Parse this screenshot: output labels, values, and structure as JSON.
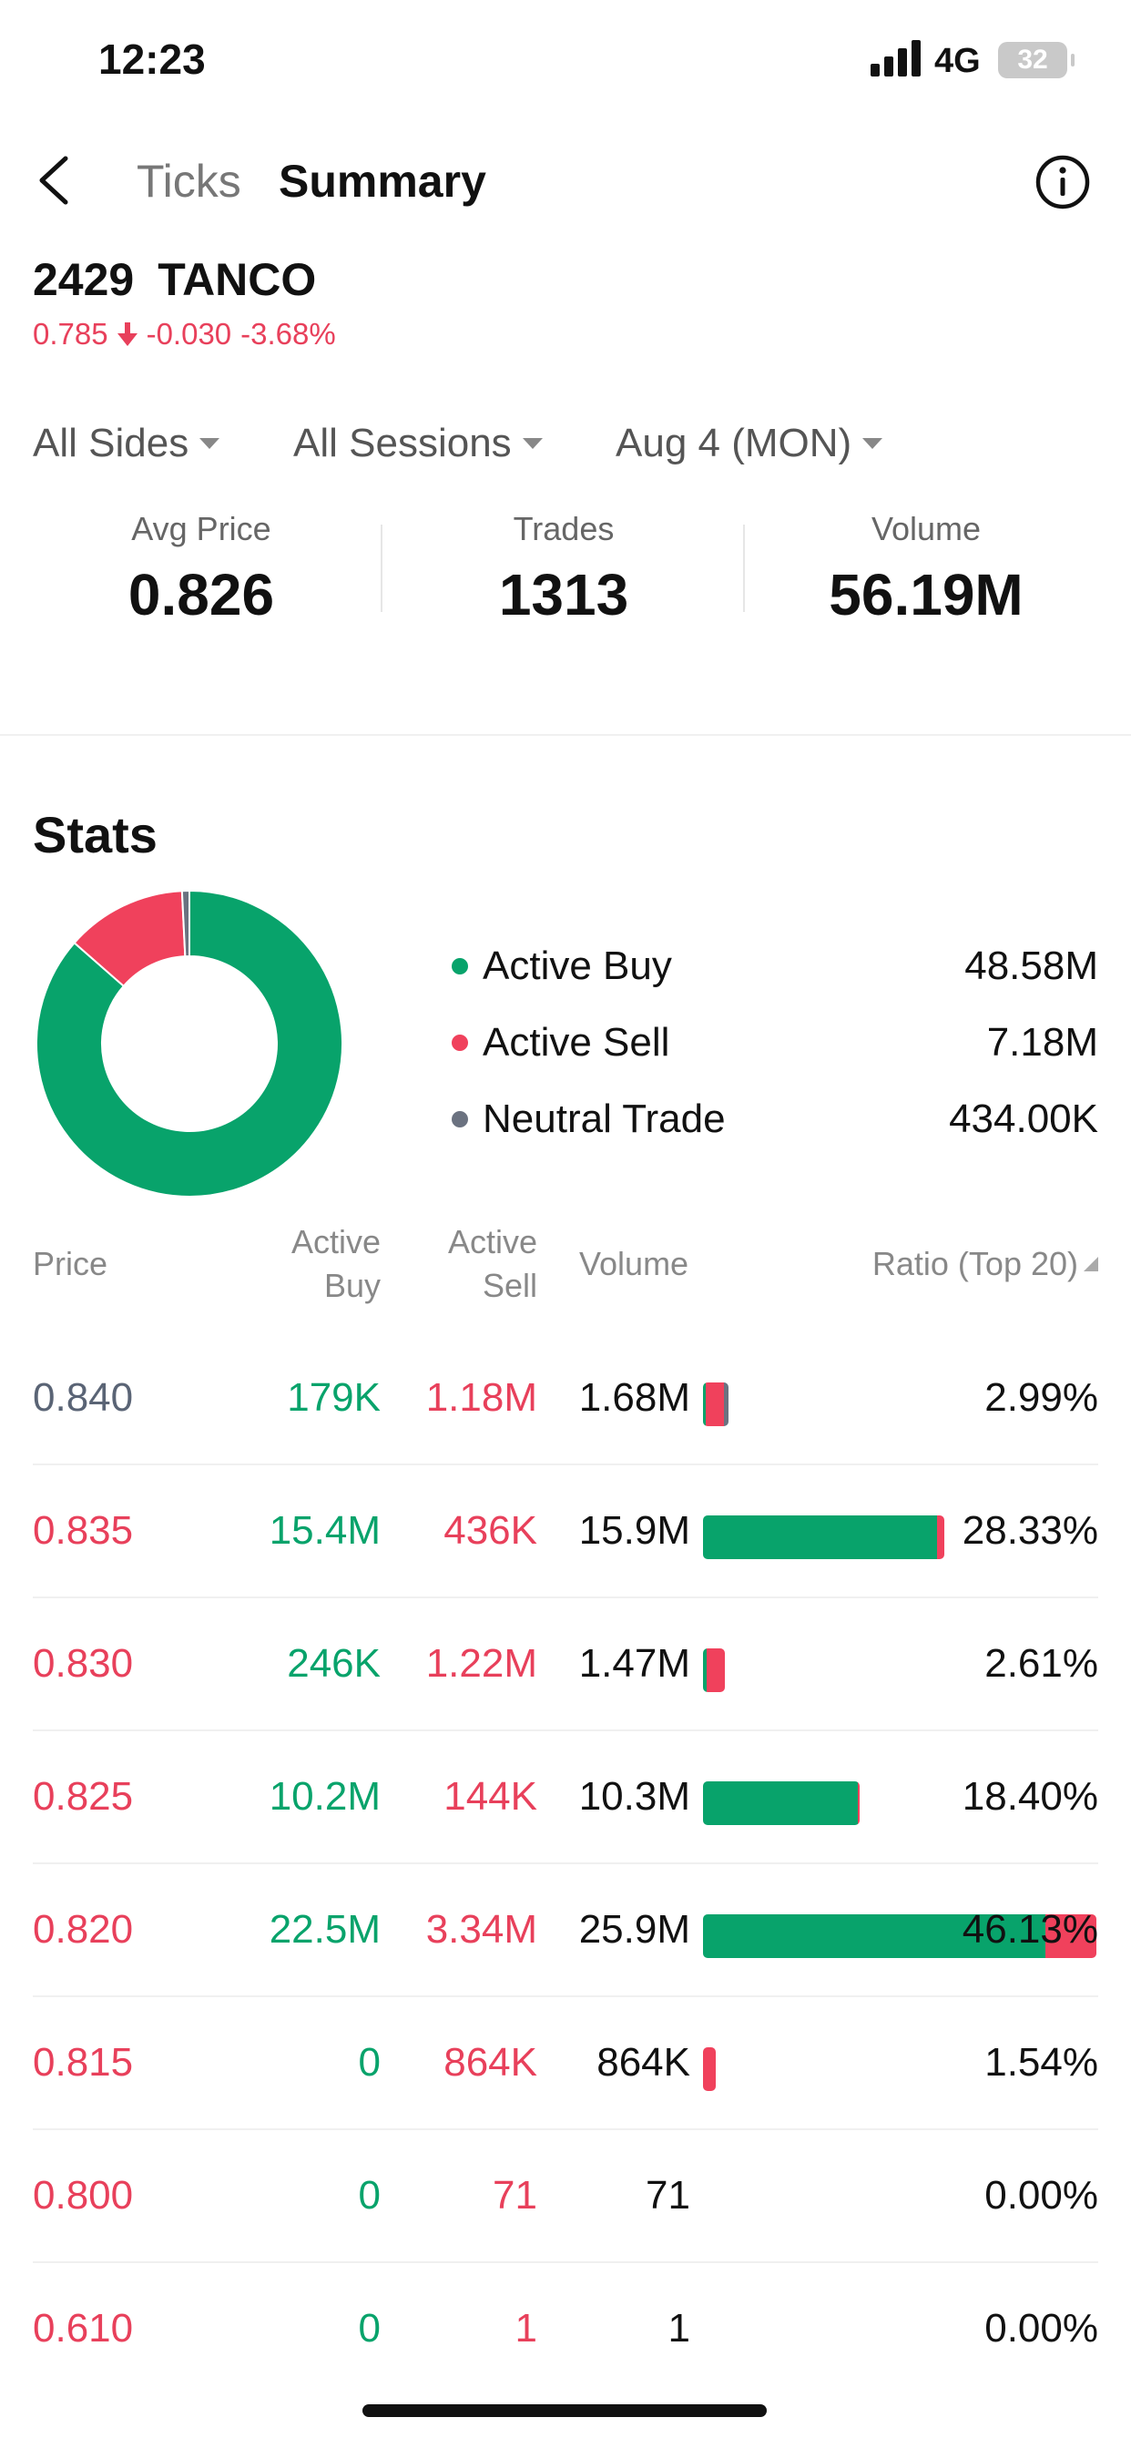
{
  "status_bar": {
    "time": "12:23",
    "network": "4G",
    "battery": "32"
  },
  "header": {
    "tabs": [
      {
        "label": "Ticks",
        "active": false
      },
      {
        "label": "Summary",
        "active": true
      }
    ],
    "back_icon": "chevron-left-icon",
    "info_icon": "info-circle-icon"
  },
  "stock": {
    "code": "2429",
    "name": "TANCO",
    "price": "0.785",
    "change": "-0.030",
    "change_pct": "-3.68%",
    "direction": "down",
    "down_color": "#e8405b"
  },
  "filters": [
    {
      "label": "All Sides"
    },
    {
      "label": "All Sessions"
    },
    {
      "label": "Aug 4 (MON)"
    }
  ],
  "metrics": [
    {
      "label": "Avg Price",
      "value": "0.826"
    },
    {
      "label": "Trades",
      "value": "1313"
    },
    {
      "label": "Volume",
      "value": "56.19M"
    }
  ],
  "stats": {
    "title": "Stats",
    "colors": {
      "buy": "#08a36b",
      "sell": "#f0415c",
      "neutral": "#6b7280"
    },
    "legend": [
      {
        "label": "Active Buy",
        "value": "48.58M"
      },
      {
        "label": "Active Sell",
        "value": "7.18M"
      },
      {
        "label": "Neutral Trade",
        "value": "434.00K"
      }
    ]
  },
  "chart_data": {
    "type": "pie",
    "categories": [
      "Active Buy",
      "Active Sell",
      "Neutral Trade"
    ],
    "values": [
      48.58,
      7.18,
      0.434
    ],
    "units": "M"
  },
  "table": {
    "headers": {
      "price": "Price",
      "active_buy_1": "Active",
      "active_buy_2": "Buy",
      "active_sell_1": "Active",
      "active_sell_2": "Sell",
      "volume": "Volume",
      "ratio": "Ratio (Top 20)"
    },
    "rows": [
      {
        "price": "0.840",
        "buy": "179K",
        "sell": "1.18M",
        "volume": "1.68M",
        "ratio": "2.99%",
        "ratio_value": 2.99,
        "buy_share": 0.11,
        "sell_share": 0.7,
        "price_neutral": true
      },
      {
        "price": "0.835",
        "buy": "15.4M",
        "sell": "436K",
        "volume": "15.9M",
        "ratio": "28.33%",
        "ratio_value": 28.33,
        "buy_share": 0.97,
        "sell_share": 0.03,
        "price_neutral": false
      },
      {
        "price": "0.830",
        "buy": "246K",
        "sell": "1.22M",
        "volume": "1.47M",
        "ratio": "2.61%",
        "ratio_value": 2.61,
        "buy_share": 0.17,
        "sell_share": 0.83,
        "price_neutral": false
      },
      {
        "price": "0.825",
        "buy": "10.2M",
        "sell": "144K",
        "volume": "10.3M",
        "ratio": "18.40%",
        "ratio_value": 18.4,
        "buy_share": 0.99,
        "sell_share": 0.01,
        "price_neutral": false
      },
      {
        "price": "0.820",
        "buy": "22.5M",
        "sell": "3.34M",
        "volume": "25.9M",
        "ratio": "46.13%",
        "ratio_value": 46.13,
        "buy_share": 0.87,
        "sell_share": 0.13,
        "price_neutral": false
      },
      {
        "price": "0.815",
        "buy": "0",
        "sell": "864K",
        "volume": "864K",
        "ratio": "1.54%",
        "ratio_value": 1.54,
        "buy_share": 0,
        "sell_share": 1,
        "price_neutral": false
      },
      {
        "price": "0.800",
        "buy": "0",
        "sell": "71",
        "volume": "71",
        "ratio": "0.00%",
        "ratio_value": 0,
        "buy_share": 0,
        "sell_share": 1,
        "price_neutral": false
      },
      {
        "price": "0.610",
        "buy": "0",
        "sell": "1",
        "volume": "1",
        "ratio": "0.00%",
        "ratio_value": 0,
        "buy_share": 0,
        "sell_share": 1,
        "price_neutral": false
      }
    ]
  }
}
